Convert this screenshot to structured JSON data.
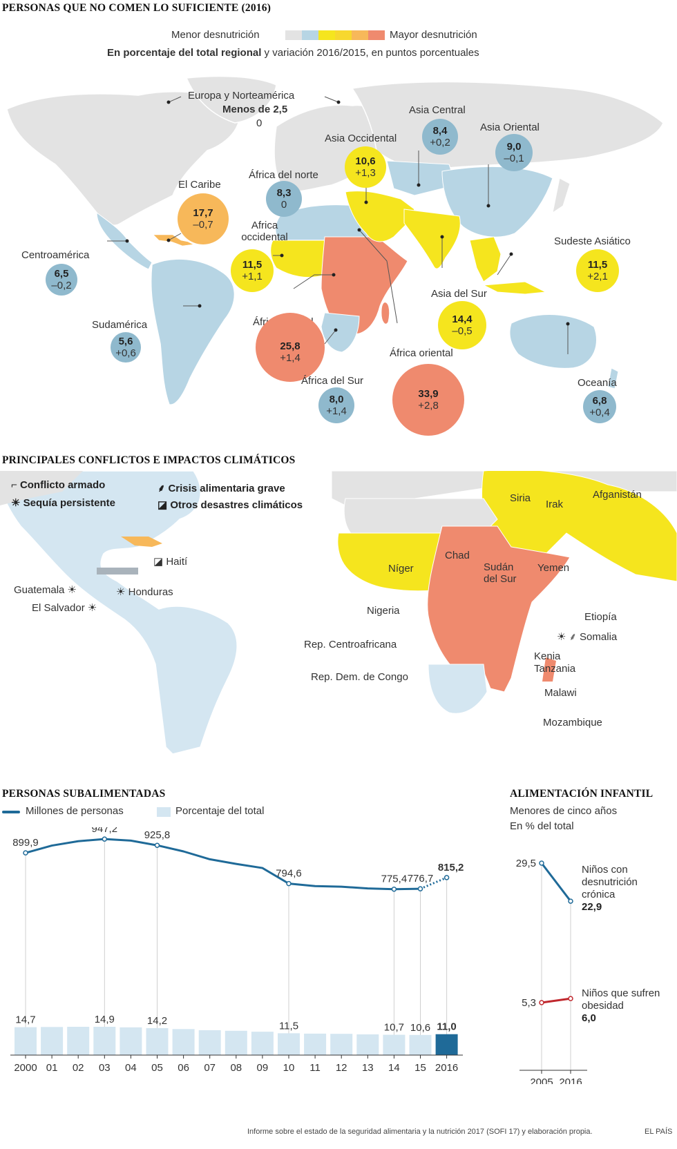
{
  "map1": {
    "title": "PERSONAS QUE NO COMEN LO SUFICIENTE (2016)",
    "legend_low": "Menor desnutrición",
    "legend_high": "Mayor desnutrición",
    "legend_colors": [
      "#e3e3e3",
      "#b7d5e4",
      "#f5e51e",
      "#f7c148",
      "#f59f5f",
      "#ef8a6e"
    ],
    "subtitle_bold": "En porcentaje del total regional",
    "subtitle_rest": " y variación 2016/2015, en puntos porcentuales",
    "europe_name": "Europa y Norteamérica",
    "europe_value": "Menos de 2,5",
    "europe_change": "0",
    "regions": [
      {
        "name": "Asia Central",
        "value": "8,4",
        "change": "+0,2"
      },
      {
        "name": "Asia Oriental",
        "value": "9,0",
        "change": "–0,1"
      },
      {
        "name": "Asia Occidental",
        "value": "10,6",
        "change": "+1,3"
      },
      {
        "name": "África del norte",
        "value": "8,3",
        "change": "0"
      },
      {
        "name": "El Caribe",
        "value": "17,7",
        "change": "–0,7"
      },
      {
        "name": "Africa occidental",
        "value": "11,5",
        "change": "+1,1"
      },
      {
        "name": "Centroamérica",
        "value": "6,5",
        "change": "–0,2"
      },
      {
        "name": "Sudeste Asiático",
        "value": "11,5",
        "change": "+2,1"
      },
      {
        "name": "Asia del Sur",
        "value": "14,4",
        "change": "–0,5"
      },
      {
        "name": "África central",
        "value": "25,8",
        "change": "+1,4"
      },
      {
        "name": "Sudamérica",
        "value": "5,6",
        "change": "+0,6"
      },
      {
        "name": "África oriental",
        "value": "33,9",
        "change": "+2,8"
      },
      {
        "name": "África del Sur",
        "value": "8,0",
        "change": "+1,4"
      },
      {
        "name": "Oceanía",
        "value": "6,8",
        "change": "+0,4"
      }
    ]
  },
  "map2": {
    "title": "PRINCIPALES CONFLICTOS E IMPACTOS CLIMÁTICOS",
    "legend": {
      "conflict": "Conflicto armado",
      "crisis": "Crisis alimentaria grave",
      "drought": "Sequía persistente",
      "other": "Otros desastres climáticos"
    },
    "countries": {
      "haiti": "Haití",
      "guatemala": "Guatemala",
      "honduras": "Honduras",
      "el_salvador": "El Salvador",
      "siria": "Siria",
      "irak": "Irak",
      "afganistan": "Afganistán",
      "niger": "Níger",
      "chad": "Chad",
      "sudan_sur": "Sudán del Sur",
      "yemen": "Yemen",
      "nigeria": "Nigeria",
      "etiopia": "Etiopía",
      "somalia": "Somalia",
      "rca": "Rep. Centroafricana",
      "kenia": "Kenia",
      "tanzania": "Tanzania",
      "rdc": "Rep. Dem. de Congo",
      "malawi": "Malawi",
      "mozambique": "Mozambique"
    }
  },
  "chart_data": [
    {
      "type": "line",
      "title": "PERSONAS SUBALIMENTADAS",
      "series_name": "Millones de personas",
      "bar_series_name": "Porcentaje del total",
      "categories": [
        "2000",
        "01",
        "02",
        "03",
        "04",
        "05",
        "06",
        "07",
        "08",
        "09",
        "10",
        "11",
        "12",
        "13",
        "14",
        "15",
        "2016"
      ],
      "millions": [
        899.9,
        925,
        940,
        947.2,
        942,
        925.8,
        905,
        878,
        862,
        848,
        794.6,
        786,
        784,
        778,
        775.4,
        776.7,
        815.2
      ],
      "millions_labels": {
        "0": "899,9",
        "3": "947,2",
        "5": "925,8",
        "10": "794,6",
        "14": "775,4",
        "15": "776,7",
        "16": "815,2"
      },
      "percent": [
        14.7,
        14.8,
        14.9,
        14.9,
        14.6,
        14.2,
        13.7,
        13.1,
        12.8,
        12.3,
        11.5,
        11.3,
        11.2,
        10.9,
        10.7,
        10.6,
        11.0
      ],
      "percent_labels": {
        "0": "14,7",
        "3": "14,9",
        "5": "14,2",
        "10": "11,5",
        "14": "10,7",
        "15": "10,6",
        "16": "11,0"
      },
      "line_color": "#1f6a98",
      "bar_color": "#d4e6f1",
      "bar_highlight": "#1f6a98"
    },
    {
      "type": "line",
      "title": "ALIMENTACIÓN INFANTIL",
      "subtitle1": "Menores de cinco años",
      "subtitle2": "En % del total",
      "x": [
        "2005",
        "2016"
      ],
      "series": [
        {
          "name": "Niños con desnutrición crónica",
          "values": [
            29.5,
            22.9
          ],
          "labels": [
            "29,5",
            "22,9"
          ],
          "color": "#1f6a98",
          "lines": [
            "Niños con",
            "desnutrición",
            "crónica"
          ]
        },
        {
          "name": "Niños que sufren obesidad",
          "values": [
            5.3,
            6.0
          ],
          "labels": [
            "5,3",
            "6,0"
          ],
          "color": "#c0272d",
          "lines": [
            "Niños que sufren",
            "obesidad"
          ]
        }
      ]
    }
  ],
  "footer": {
    "source": "Informe sobre el estado de la seguridad alimentaria y la nutrición 2017 (SOFI 17) y elaboración propia.",
    "brand": "EL PAÍS"
  }
}
